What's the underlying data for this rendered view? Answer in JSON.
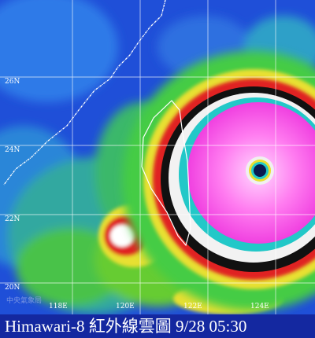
{
  "map": {
    "lat_labels": [
      "26N",
      "24N",
      "22N",
      "20N"
    ],
    "lon_labels": [
      "118E",
      "120E",
      "122E",
      "124E"
    ],
    "watermark": "中央氣象局",
    "caption": "Himawari-8 紅外線雲圖 9/28 05:30"
  }
}
